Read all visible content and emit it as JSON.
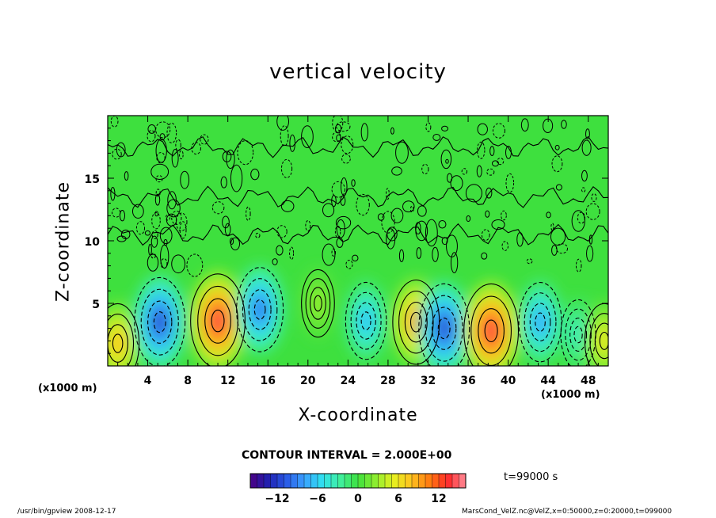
{
  "chart_data": {
    "type": "heatmap",
    "title": "vertical velocity",
    "xlabel": "X-coordinate",
    "ylabel": "Z-coordinate",
    "x_unit": "(x1000 m)",
    "xlim": [
      0,
      50
    ],
    "ylim": [
      0,
      20
    ],
    "x_ticks": [
      "4",
      "8",
      "12",
      "16",
      "20",
      "24",
      "28",
      "32",
      "36",
      "40",
      "44",
      "48"
    ],
    "y_ticks": [
      "5",
      "10",
      "15"
    ],
    "contour_interval_text": "CONTOUR INTERVAL = 2.000E+00",
    "colorbar": {
      "range": [
        -16,
        16
      ],
      "ticks": [
        "−12",
        "−6",
        "0",
        "6",
        "12"
      ],
      "tick_values": [
        -12,
        -6,
        0,
        6,
        12
      ]
    },
    "cells": [
      {
        "x": 1.0,
        "z": 1.8,
        "value": 8
      },
      {
        "x": 5.2,
        "z": 3.5,
        "value": -12
      },
      {
        "x": 11.0,
        "z": 3.6,
        "value": 14
      },
      {
        "x": 15.2,
        "z": 4.5,
        "value": -10
      },
      {
        "x": 21.0,
        "z": 5.0,
        "value": 3
      },
      {
        "x": 25.8,
        "z": 3.6,
        "value": -7
      },
      {
        "x": 30.8,
        "z": 3.5,
        "value": 10
      },
      {
        "x": 33.6,
        "z": 3.0,
        "value": -12
      },
      {
        "x": 38.3,
        "z": 2.8,
        "value": 14
      },
      {
        "x": 43.2,
        "z": 3.5,
        "value": -8
      },
      {
        "x": 47.0,
        "z": 2.5,
        "value": -4
      },
      {
        "x": 49.6,
        "z": 2.0,
        "value": 6
      }
    ]
  },
  "annotations": {
    "time": "t=99000 s",
    "footer_left": "/usr/bin/gpview   2008-12-17",
    "footer_right": "MarsCond_VelZ.nc@VelZ,x=0:50000,z=0:20000,t=099000"
  }
}
